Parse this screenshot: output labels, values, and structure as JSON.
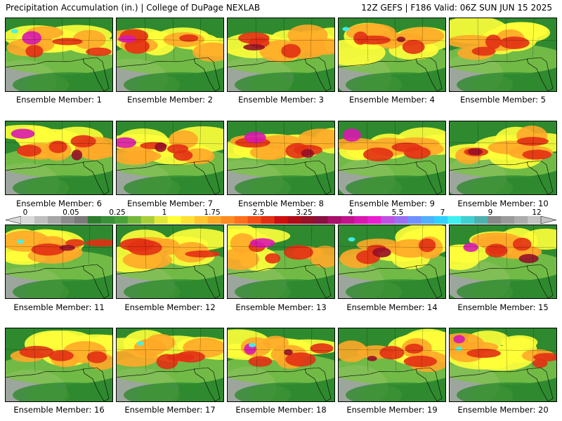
{
  "header": {
    "title_left": "Precipitation Accumulation (in.) | College of DuPage NEXLAB",
    "title_right": "12Z GEFS | F186 Valid: 06Z SUN JUN 15 2025"
  },
  "panels": [
    {
      "label": "Ensemble Member: 1"
    },
    {
      "label": "Ensemble Member: 2"
    },
    {
      "label": "Ensemble Member: 3"
    },
    {
      "label": "Ensemble Member: 4"
    },
    {
      "label": "Ensemble Member: 5"
    },
    {
      "label": "Ensemble Member: 6"
    },
    {
      "label": "Ensemble Member: 7"
    },
    {
      "label": "Ensemble Member: 8"
    },
    {
      "label": "Ensemble Member: 9"
    },
    {
      "label": "Ensemble Member: 10"
    },
    {
      "label": "Ensemble Member: 11"
    },
    {
      "label": "Ensemble Member: 12"
    },
    {
      "label": "Ensemble Member: 13"
    },
    {
      "label": "Ensemble Member: 14"
    },
    {
      "label": "Ensemble Member: 15"
    },
    {
      "label": "Ensemble Member: 16"
    },
    {
      "label": "Ensemble Member: 17"
    },
    {
      "label": "Ensemble Member: 18"
    },
    {
      "label": "Ensemble Member: 19"
    },
    {
      "label": "Ensemble Member: 20"
    }
  ],
  "colorbar": {
    "tick_labels": [
      "0",
      "0.05",
      "0.25",
      "1",
      "1.75",
      "2.5",
      "3.25",
      "4",
      "5.5",
      "7",
      "9",
      "12"
    ],
    "colors": [
      "#d9d9d9",
      "#bfbfbf",
      "#a6a6a6",
      "#8c8c8c",
      "#7a7a7a",
      "#2e7d2e",
      "#3a8f3a",
      "#4aa03a",
      "#74b83a",
      "#a8cf3a",
      "#e2e83a",
      "#ffff3a",
      "#ffe034",
      "#ffc42e",
      "#ffa828",
      "#ff8c22",
      "#ff701c",
      "#f25018",
      "#e23014",
      "#cc1010",
      "#b00c18",
      "#961028",
      "#8a1040",
      "#a8106a",
      "#c0148c",
      "#d818b0",
      "#e81ed0",
      "#c050e0",
      "#9a70f0",
      "#7090ff",
      "#50b0ff",
      "#30d0ff",
      "#40f0f0",
      "#40d0d0",
      "#50b0b0",
      "#888888",
      "#9a9a9a",
      "#acacac",
      "#c4c4c4"
    ],
    "palette": {
      "gray": "#a9a9a9",
      "green": "#2f8a2f",
      "lightgreen": "#7cc24a",
      "yellow": "#ffff3a",
      "orange": "#ffa828",
      "red": "#e23014",
      "darkred": "#961028",
      "magenta": "#d818b0",
      "cyan": "#40f0f0"
    }
  }
}
